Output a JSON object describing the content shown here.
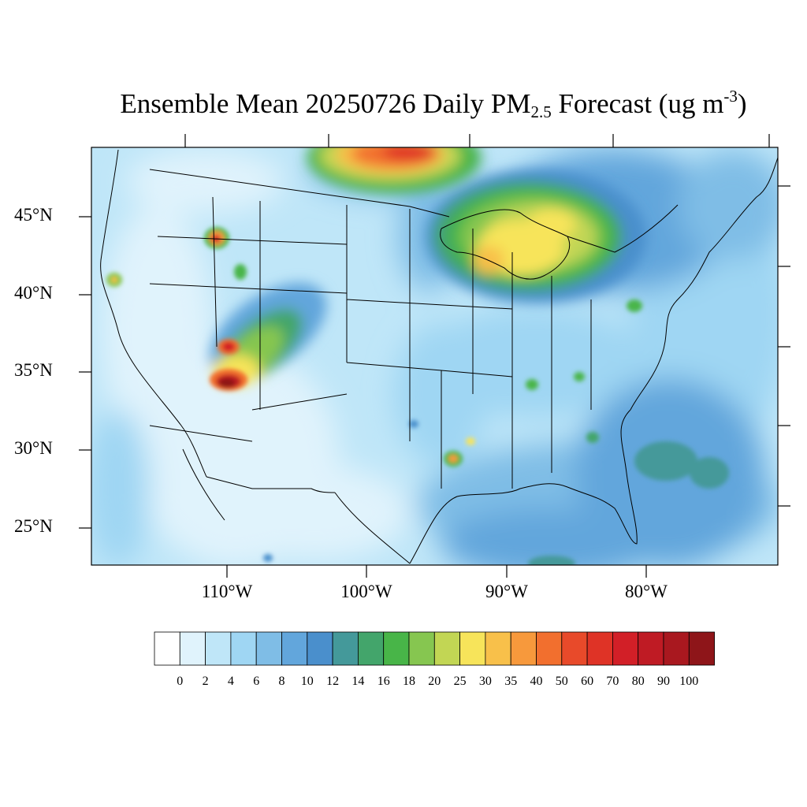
{
  "title": {
    "main": "Ensemble Mean 20250726 Daily PM",
    "sub": "2.5",
    "rest": " Forecast (ug m",
    "sup": "-3",
    "end": ")"
  },
  "lat_labels": [
    "45°N",
    "40°N",
    "35°N",
    "30°N",
    "25°N"
  ],
  "lon_labels": [
    "110°W",
    "100°W",
    "90°W",
    "80°W"
  ],
  "colorbar": {
    "labels": [
      "0",
      "2",
      "4",
      "6",
      "8",
      "10",
      "12",
      "14",
      "16",
      "18",
      "20",
      "25",
      "30",
      "35",
      "40",
      "50",
      "60",
      "70",
      "80",
      "90",
      "100"
    ],
    "colors": [
      "#ffffff",
      "#e0f3fc",
      "#bfe6f8",
      "#9fd6f3",
      "#7fbde6",
      "#62a6dc",
      "#4a8fcc",
      "#44999a",
      "#43a56b",
      "#48b548",
      "#86c650",
      "#c2d654",
      "#f7e45a",
      "#f8c04a",
      "#f7993c",
      "#f26f2e",
      "#e84a2a",
      "#df3326",
      "#d21f27",
      "#bf1b24",
      "#a9181f",
      "#8e1519"
    ]
  },
  "map_data": {
    "background_level": "2-4 ug m-3",
    "hotspots": [
      {
        "name": "Northern Arizona",
        "lon": -110.0,
        "lat": 34.3,
        "level": ">100"
      },
      {
        "name": "Southwest Colorado",
        "lon": -108.5,
        "lat": 36.6,
        "level": "50-70"
      },
      {
        "name": "Southern Manitoba / Ontario",
        "lon": -97.0,
        "lat": 49.0,
        "level": "50-80"
      },
      {
        "name": "Great Lakes region",
        "lon": -85.5,
        "lat": 44.0,
        "level": "25-35"
      },
      {
        "name": "Central Idaho",
        "lon": -110.8,
        "lat": 43.7,
        "level": "50-70"
      },
      {
        "name": "Northern California",
        "lon": -118.4,
        "lat": 40.9,
        "level": "20-25"
      },
      {
        "name": "Louisiana",
        "lon": -93.5,
        "lat": 29.5,
        "level": "30-40"
      },
      {
        "name": "Western Gulf of Mexico / Atlantic",
        "lon": -78.0,
        "lat": 29.0,
        "level": "12-16"
      }
    ]
  }
}
